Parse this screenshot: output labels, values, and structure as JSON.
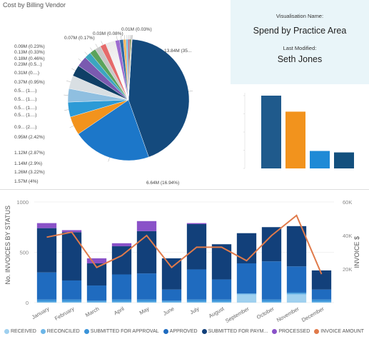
{
  "pie_panel": {
    "title": "Cost by Billing Vendor"
  },
  "info": {
    "vis_name_caption": "Visualisation Name:",
    "vis_name": "Spend by Practice Area",
    "modified_caption": "Last Modified:",
    "modified_by": "Seth Jones"
  },
  "mini_chart": {
    "values": [
      100,
      78,
      24,
      22
    ],
    "colors": [
      "#1f5a8c",
      "#f2931d",
      "#1f8ad6",
      "#13507e"
    ]
  },
  "colors": {
    "received": "#9fd0ef",
    "reconciled": "#6cb6e8",
    "submitted_for_approval": "#3a93d8",
    "approved": "#1f6bbf",
    "submitted_for_payment": "#12407a",
    "processed": "#8a52c8",
    "invoice_amount": "#e07a4a"
  },
  "chart_data": [
    {
      "type": "pie",
      "title": "Cost by Billing Vendor",
      "slices": [
        {
          "label": "13.84M (35...",
          "value": 13.84,
          "color": "#144a7d"
        },
        {
          "label": "6.64M (16.94%)",
          "value": 6.64,
          "color": "#1c77c9"
        },
        {
          "label": "1.57M (4%)",
          "value": 1.57,
          "color": "#f2931d"
        },
        {
          "label": "1.26M (3.22%)",
          "value": 1.26,
          "color": "#2c9ad6"
        },
        {
          "label": "1.14M (2.9%)",
          "value": 1.14,
          "color": "#8fbfe0"
        },
        {
          "label": "1.12M (2.87%)",
          "value": 1.12,
          "color": "#d9dfe3"
        },
        {
          "label": "0.95M (2.42%)",
          "value": 0.95,
          "color": "#0f3f66"
        },
        {
          "label": "0.9... (2....)",
          "value": 0.9,
          "color": "#7a5ab0"
        },
        {
          "label": "0.5... (1....)",
          "value": 0.55,
          "color": "#3ba6c0"
        },
        {
          "label": "0.5... (1....)",
          "value": 0.52,
          "color": "#5ba35b"
        },
        {
          "label": "0.5... (1....)",
          "value": 0.5,
          "color": "#c7c7c7"
        },
        {
          "label": "0.5... (1....)",
          "value": 0.48,
          "color": "#e56a6a"
        },
        {
          "label": "0.37M (0.95%)",
          "value": 0.37,
          "color": "#9d6cd0"
        },
        {
          "label": "0.31M (0....)",
          "value": 0.31,
          "color": "#2f6aa3"
        },
        {
          "label": "0.23M (0.5...)",
          "value": 0.23,
          "color": "#f0b45c"
        },
        {
          "label": "0.18M (0.46%)",
          "value": 0.18,
          "color": "#6fb7e6"
        },
        {
          "label": "0.13M (0.33%)",
          "value": 0.13,
          "color": "#b04a6a"
        },
        {
          "label": "0.09M (0.23%)",
          "value": 0.09,
          "color": "#5c8a4d"
        },
        {
          "label": "0.07M (0.17%)",
          "value": 0.07,
          "color": "#8b6b2a"
        },
        {
          "label": "0.03M (0.08%)",
          "value": 0.03,
          "color": "#4d79a8"
        },
        {
          "label": "0.01M (0.03%)",
          "value": 0.01,
          "color": "#a3a3a3"
        }
      ],
      "small_slice_colors": [
        "#e5a63a",
        "#4f8fc2",
        "#a367c7",
        "#37a38f",
        "#d95757",
        "#8fa7c0",
        "#c9b02e",
        "#5a6fb8",
        "#d18ac0",
        "#3f7f5f",
        "#b8763d",
        "#6e9fd6",
        "#c45c8a",
        "#7fb04a",
        "#916fc9",
        "#3d94b3",
        "#d4925a",
        "#5b5b8f",
        "#9ec46b",
        "#c06060",
        "#4a7fae",
        "#e0c060",
        "#7a4f9e",
        "#3aaa8a",
        "#d37a3a",
        "#8a8a8a",
        "#517fbf",
        "#b3569b",
        "#6fa05a",
        "#c38b2e"
      ]
    },
    {
      "type": "bar",
      "title": "",
      "categories": [
        "",
        "",
        "",
        ""
      ],
      "values": [
        100,
        78,
        24,
        22
      ]
    },
    {
      "type": "bar",
      "stacked": true,
      "categories": [
        "January",
        "February",
        "March",
        "April",
        "May",
        "June",
        "July",
        "August",
        "September",
        "October",
        "November",
        "December"
      ],
      "ylabel": "No. INVOICES BY STATUS",
      "y2label": "INVOICE $",
      "ylim": [
        0,
        1000
      ],
      "y2lim": [
        0,
        60000
      ],
      "y_ticks": [
        "1000",
        "500",
        "0"
      ],
      "y2_ticks": [
        "60K",
        "40K",
        "20K"
      ],
      "series": [
        {
          "name": "RECEIVED",
          "values": [
            0,
            0,
            0,
            0,
            0,
            0,
            0,
            0,
            80,
            0,
            80,
            0
          ]
        },
        {
          "name": "RECONCILED",
          "values": [
            10,
            10,
            10,
            10,
            10,
            10,
            10,
            10,
            10,
            10,
            10,
            10
          ]
        },
        {
          "name": "SUBMITTED FOR APPROVAL",
          "values": [
            20,
            20,
            10,
            20,
            20,
            10,
            20,
            20,
            0,
            20,
            10,
            20
          ]
        },
        {
          "name": "APPROVED",
          "values": [
            270,
            190,
            150,
            250,
            260,
            110,
            300,
            200,
            300,
            380,
            260,
            100
          ]
        },
        {
          "name": "SUBMITTED FOR PAYM...",
          "values": [
            440,
            480,
            220,
            280,
            420,
            310,
            450,
            350,
            300,
            340,
            400,
            190
          ]
        },
        {
          "name": "PROCESSED",
          "values": [
            50,
            20,
            50,
            30,
            100,
            0,
            10,
            0,
            0,
            0,
            0,
            0
          ]
        },
        {
          "name": "INVOICE AMOUNT",
          "type": "line",
          "values": [
            39000,
            42000,
            21000,
            28000,
            40000,
            21000,
            33000,
            33000,
            25000,
            40000,
            52000,
            17000
          ]
        }
      ]
    }
  ]
}
